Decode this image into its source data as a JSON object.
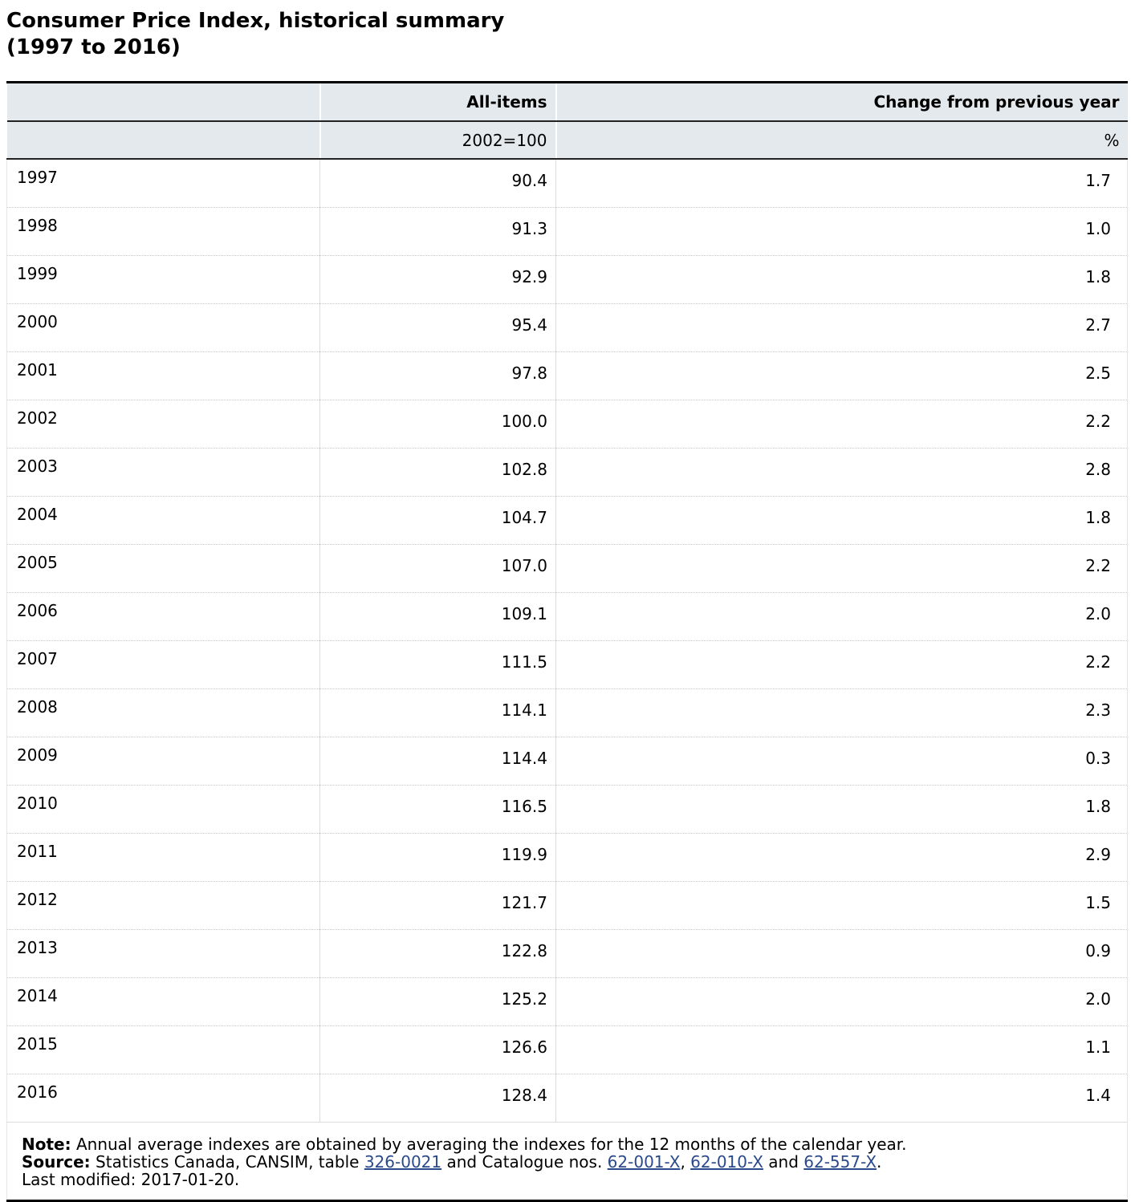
{
  "title_line1": "Consumer Price Index, historical summary",
  "title_line2": "(1997 to 2016)",
  "table": {
    "header_row1": {
      "col_cpi": "All-items",
      "col_change": "Change from previous year"
    },
    "header_row2": {
      "col_cpi": "2002=100",
      "col_change": "%"
    },
    "rows": [
      {
        "year": "1997",
        "cpi": "90.4",
        "change": "1.7"
      },
      {
        "year": "1998",
        "cpi": "91.3",
        "change": "1.0"
      },
      {
        "year": "1999",
        "cpi": "92.9",
        "change": "1.8"
      },
      {
        "year": "2000",
        "cpi": "95.4",
        "change": "2.7"
      },
      {
        "year": "2001",
        "cpi": "97.8",
        "change": "2.5"
      },
      {
        "year": "2002",
        "cpi": "100.0",
        "change": "2.2"
      },
      {
        "year": "2003",
        "cpi": "102.8",
        "change": "2.8"
      },
      {
        "year": "2004",
        "cpi": "104.7",
        "change": "1.8"
      },
      {
        "year": "2005",
        "cpi": "107.0",
        "change": "2.2"
      },
      {
        "year": "2006",
        "cpi": "109.1",
        "change": "2.0"
      },
      {
        "year": "2007",
        "cpi": "111.5",
        "change": "2.2"
      },
      {
        "year": "2008",
        "cpi": "114.1",
        "change": "2.3"
      },
      {
        "year": "2009",
        "cpi": "114.4",
        "change": "0.3"
      },
      {
        "year": "2010",
        "cpi": "116.5",
        "change": "1.8"
      },
      {
        "year": "2011",
        "cpi": "119.9",
        "change": "2.9"
      },
      {
        "year": "2012",
        "cpi": "121.7",
        "change": "1.5"
      },
      {
        "year": "2013",
        "cpi": "122.8",
        "change": "0.9"
      },
      {
        "year": "2014",
        "cpi": "125.2",
        "change": "2.0"
      },
      {
        "year": "2015",
        "cpi": "126.6",
        "change": "1.1"
      },
      {
        "year": "2016",
        "cpi": "128.4",
        "change": "1.4"
      }
    ]
  },
  "footer": {
    "note_label": "Note:",
    "note_text": " Annual average indexes are obtained by averaging the indexes for the 12 months of the calendar year.",
    "source_label": "Source:",
    "source_text_1": " Statistics Canada, CANSIM, table ",
    "link_table": "326-0021",
    "source_text_2": " and Catalogue nos. ",
    "link_cat1": "62-001-X",
    "sep1": ", ",
    "link_cat2": "62-010-X",
    "source_text_3": " and ",
    "link_cat3": "62-557-X",
    "source_end": ".",
    "last_modified": "Last modified: 2017-01-20."
  },
  "colors": {
    "header_bg": "#e3e9ec",
    "link": "#2b4a8b",
    "rule": "#000000"
  }
}
